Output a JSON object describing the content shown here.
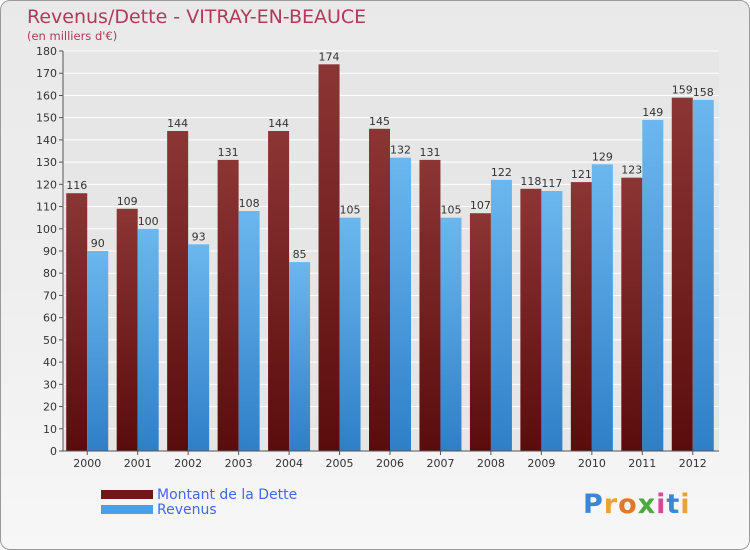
{
  "title": "Revenus/Dette - VITRAY-EN-BEAUCE",
  "subtitle": "(en milliers d'€)",
  "logo": {
    "letters": [
      "P",
      "r",
      "o",
      "x",
      "i",
      "t",
      "i"
    ],
    "colors": [
      "#3c86d8",
      "#e8a23a",
      "#e07a2a",
      "#4aaa3c",
      "#d64a9a",
      "#3c86d8",
      "#e8a23a"
    ]
  },
  "colors": {
    "dette": "#6e1a1a",
    "revenus": "#4aa0e6",
    "dette_light": "#8c3535",
    "revenus_light": "#6bb7ee"
  },
  "chart_data": {
    "type": "bar",
    "title": "Revenus/Dette - VITRAY-EN-BEAUCE",
    "subtitle": "(en milliers d'€)",
    "categories": [
      "2000",
      "2001",
      "2002",
      "2003",
      "2004",
      "2005",
      "2006",
      "2007",
      "2008",
      "2009",
      "2010",
      "2011",
      "2012"
    ],
    "series": [
      {
        "name": "Montant de la Dette",
        "values": [
          116,
          109,
          144,
          131,
          144,
          174,
          145,
          131,
          107,
          118,
          121,
          123,
          159
        ]
      },
      {
        "name": "Revenus",
        "values": [
          90,
          100,
          93,
          108,
          85,
          105,
          132,
          105,
          122,
          117,
          129,
          149,
          158
        ]
      }
    ],
    "ylim": [
      0,
      180
    ],
    "yticks": [
      0,
      10,
      20,
      30,
      40,
      50,
      60,
      70,
      80,
      90,
      100,
      110,
      120,
      130,
      140,
      150,
      160,
      170,
      180
    ],
    "grid": true,
    "legend": "bottom-left"
  }
}
